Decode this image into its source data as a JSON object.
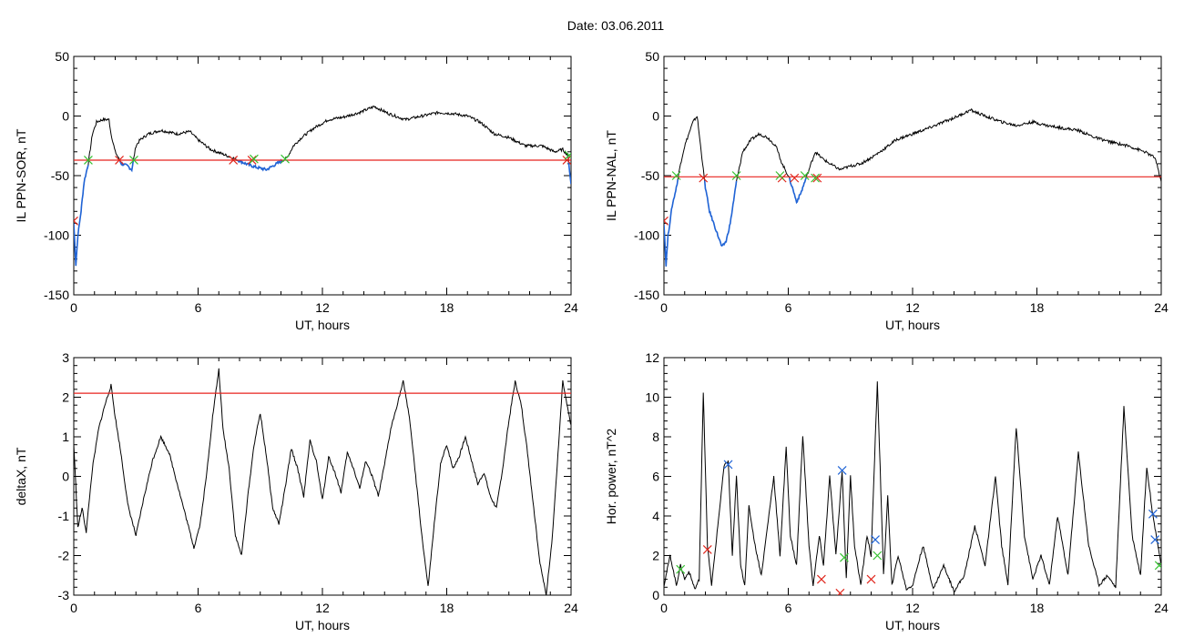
{
  "figure": {
    "title": "Date:  03.06.2011"
  },
  "colors": {
    "line": "#000000",
    "threshold": "#e8231e",
    "blue": "#1f63d6",
    "green": "#35c130",
    "red_marker": "#e0261c"
  },
  "chart_data": [
    {
      "id": "ppn-sor",
      "type": "line",
      "ylabel": "IL PPN-SOR, nT",
      "xlabel": "UT, hours",
      "xlim": [
        0,
        24
      ],
      "ylim": [
        -150,
        50
      ],
      "xticks": [
        "0",
        "6",
        "12",
        "18",
        "24"
      ],
      "yticks": [
        "50",
        "0",
        "-50",
        "-100",
        "-150"
      ],
      "threshold": -37,
      "series": [
        {
          "x": [
            0,
            0.1,
            0.2,
            0.35,
            0.5,
            0.7,
            0.9,
            1.1,
            1.4,
            1.7,
            1.8,
            2.0,
            2.3,
            2.6,
            2.8,
            3.0,
            3.2,
            3.6,
            4.2,
            5.0,
            5.6,
            6.0,
            6.6,
            7.2,
            7.8,
            8.3,
            8.8,
            9.3,
            9.8,
            10.3,
            10.6,
            11.0,
            11.6,
            12.3,
            13.0,
            13.8,
            14.5,
            15.2,
            16.0,
            16.8,
            17.6,
            18.3,
            19.0,
            19.6,
            20.3,
            21.0,
            21.8,
            22.6,
            23.2,
            23.6,
            23.85,
            24
          ],
          "y": [
            -90,
            -125,
            -100,
            -80,
            -55,
            -40,
            -15,
            -5,
            -3,
            -3,
            -15,
            -30,
            -40,
            -42,
            -45,
            -25,
            -20,
            -15,
            -12,
            -15,
            -13,
            -20,
            -28,
            -32,
            -36,
            -40,
            -43,
            -45,
            -40,
            -35,
            -25,
            -18,
            -10,
            -3,
            -1,
            3,
            8,
            2,
            -3,
            0,
            3,
            2,
            0,
            -5,
            -15,
            -18,
            -25,
            -25,
            -30,
            -28,
            -33,
            -57
          ]
        }
      ],
      "markers": {
        "red": [
          [
            0,
            -88
          ],
          [
            2.2,
            -37
          ],
          [
            7.7,
            -37
          ],
          [
            8.6,
            -37
          ],
          [
            23.8,
            -37
          ]
        ],
        "green": [
          [
            0.7,
            -37
          ],
          [
            2.9,
            -37
          ],
          [
            8.7,
            -36
          ],
          [
            10.2,
            -36
          ],
          [
            23.9,
            -33
          ]
        ],
        "blue_segments": [
          [
            0,
            0.8
          ],
          [
            2.2,
            3.0
          ],
          [
            7.7,
            10.3
          ],
          [
            23.6,
            24
          ]
        ]
      }
    },
    {
      "id": "ppn-nal",
      "type": "line",
      "ylabel": "IL PPN-NAL, nT",
      "xlabel": "UT, hours",
      "xlim": [
        0,
        24
      ],
      "ylim": [
        -150,
        50
      ],
      "xticks": [
        "0",
        "6",
        "12",
        "18",
        "24"
      ],
      "yticks": [
        "50",
        "0",
        "-50",
        "-100",
        "-150"
      ],
      "threshold": -51,
      "series": [
        {
          "x": [
            0,
            0.1,
            0.2,
            0.4,
            0.6,
            0.8,
            1.0,
            1.2,
            1.4,
            1.6,
            1.8,
            2.0,
            2.2,
            2.4,
            2.6,
            2.8,
            3.0,
            3.2,
            3.5,
            3.8,
            4.2,
            4.6,
            5.0,
            5.4,
            5.7,
            6.0,
            6.2,
            6.4,
            6.6,
            6.8,
            7.0,
            7.3,
            7.6,
            8.0,
            8.5,
            9.0,
            9.5,
            10.0,
            10.6,
            11.2,
            12.0,
            12.8,
            13.5,
            14.2,
            14.8,
            15.5,
            16.3,
            17.0,
            17.8,
            18.5,
            19.2,
            20.0,
            20.8,
            21.6,
            22.4,
            23.2,
            23.7,
            24
          ],
          "y": [
            -90,
            -125,
            -100,
            -75,
            -60,
            -40,
            -25,
            -15,
            -5,
            0,
            -30,
            -60,
            -80,
            -90,
            -100,
            -110,
            -105,
            -90,
            -55,
            -30,
            -20,
            -15,
            -18,
            -25,
            -40,
            -50,
            -60,
            -72,
            -65,
            -55,
            -45,
            -30,
            -35,
            -40,
            -45,
            -42,
            -40,
            -35,
            -28,
            -20,
            -15,
            -10,
            -5,
            0,
            5,
            0,
            -5,
            -8,
            -5,
            -8,
            -10,
            -12,
            -18,
            -22,
            -25,
            -30,
            -35,
            -55
          ]
        }
      ],
      "markers": {
        "red": [
          [
            0,
            -88
          ],
          [
            1.9,
            -52
          ],
          [
            5.7,
            -52
          ],
          [
            6.3,
            -52
          ],
          [
            7.4,
            -52
          ]
        ],
        "green": [
          [
            0.6,
            -50
          ],
          [
            3.5,
            -50
          ],
          [
            5.6,
            -50
          ],
          [
            6.8,
            -50
          ],
          [
            7.3,
            -52
          ]
        ],
        "blue_segments": [
          [
            0,
            0.7
          ],
          [
            1.8,
            3.5
          ],
          [
            5.6,
            7.5
          ]
        ]
      }
    },
    {
      "id": "deltax",
      "type": "line",
      "ylabel": "deltaX, nT",
      "xlabel": "UT, hours",
      "xlim": [
        0,
        24
      ],
      "ylim": [
        -3,
        3
      ],
      "xticks": [
        "0",
        "6",
        "12",
        "18",
        "24"
      ],
      "yticks": [
        "3",
        "2",
        "1",
        "0",
        "-1",
        "-2",
        "-3"
      ],
      "threshold": 2.1,
      "series": [
        {
          "x": [
            0,
            0.2,
            0.4,
            0.6,
            0.9,
            1.2,
            1.5,
            1.8,
            2.0,
            2.3,
            2.6,
            3.0,
            3.4,
            3.8,
            4.2,
            4.6,
            5.0,
            5.4,
            5.8,
            6.1,
            6.4,
            6.7,
            7.0,
            7.2,
            7.5,
            7.8,
            8.1,
            8.4,
            8.7,
            9.0,
            9.3,
            9.6,
            9.9,
            10.2,
            10.5,
            10.8,
            11.1,
            11.4,
            11.7,
            12.0,
            12.3,
            12.6,
            12.9,
            13.2,
            13.5,
            13.8,
            14.1,
            14.4,
            14.7,
            15.0,
            15.3,
            15.6,
            15.9,
            16.2,
            16.5,
            16.8,
            17.1,
            17.4,
            17.7,
            18.0,
            18.3,
            18.6,
            18.9,
            19.2,
            19.5,
            19.8,
            20.1,
            20.4,
            20.7,
            21.0,
            21.3,
            21.6,
            21.9,
            22.2,
            22.5,
            22.8,
            23.1,
            23.4,
            23.6,
            23.8,
            24
          ],
          "y": [
            0.8,
            -1.3,
            -0.8,
            -1.4,
            0.2,
            1.2,
            1.8,
            2.3,
            1.5,
            0.5,
            -0.7,
            -1.5,
            -0.5,
            0.4,
            1.0,
            0.6,
            -0.2,
            -1.0,
            -1.8,
            -1.2,
            0.0,
            1.5,
            2.7,
            1.2,
            0.2,
            -1.5,
            -2.0,
            -0.5,
            0.8,
            1.6,
            0.5,
            -0.8,
            -1.2,
            -0.3,
            0.7,
            0.2,
            -0.5,
            0.9,
            0.4,
            -0.6,
            0.5,
            0.1,
            -0.4,
            0.6,
            0.2,
            -0.3,
            0.4,
            0.0,
            -0.5,
            0.3,
            1.2,
            1.8,
            2.4,
            1.5,
            0.0,
            -1.5,
            -2.8,
            -1.2,
            0.3,
            0.8,
            0.2,
            0.5,
            1.0,
            0.4,
            -0.2,
            0.1,
            -0.5,
            -0.8,
            0.2,
            1.4,
            2.4,
            1.8,
            0.6,
            -0.8,
            -2.2,
            -3.0,
            -1.5,
            0.8,
            2.4,
            1.8,
            1.3
          ]
        }
      ]
    },
    {
      "id": "hor-power",
      "type": "line",
      "ylabel": "Hor. power, nT^2",
      "xlabel": "UT, hours",
      "xlim": [
        0,
        24
      ],
      "ylim": [
        0,
        12
      ],
      "xticks": [
        "0",
        "6",
        "12",
        "18",
        "24"
      ],
      "yticks": [
        "12",
        "10",
        "8",
        "6",
        "4",
        "2",
        "0"
      ],
      "series": [
        {
          "x": [
            0,
            0.3,
            0.6,
            0.8,
            1.0,
            1.2,
            1.5,
            1.7,
            1.9,
            2.1,
            2.3,
            2.6,
            2.9,
            3.1,
            3.3,
            3.5,
            3.7,
            3.9,
            4.1,
            4.4,
            4.7,
            5.0,
            5.3,
            5.6,
            5.9,
            6.1,
            6.4,
            6.7,
            7.0,
            7.2,
            7.5,
            7.7,
            8.0,
            8.3,
            8.6,
            8.8,
            9.0,
            9.2,
            9.5,
            9.8,
            10.0,
            10.3,
            10.6,
            10.8,
            11.0,
            11.3,
            11.7,
            12.0,
            12.5,
            13.0,
            13.5,
            14.0,
            14.5,
            15.0,
            15.5,
            16.0,
            16.3,
            16.6,
            17.0,
            17.4,
            17.8,
            18.2,
            18.6,
            19.0,
            19.5,
            20.0,
            20.5,
            21.0,
            21.4,
            21.8,
            22.2,
            22.6,
            23.0,
            23.3,
            23.6,
            23.8,
            24
          ],
          "y": [
            0.5,
            2.0,
            0.5,
            1.5,
            0.8,
            1.2,
            0.3,
            0.8,
            10.3,
            2.5,
            0.5,
            3.5,
            6.5,
            6.8,
            2.0,
            6.0,
            1.5,
            0.5,
            4.5,
            2.5,
            1.0,
            3.5,
            6.0,
            2.0,
            7.5,
            3.0,
            1.5,
            8.1,
            2.5,
            0.5,
            3.0,
            1.5,
            6.0,
            2.0,
            6.3,
            0.8,
            6.0,
            2.5,
            0.5,
            3.0,
            2.0,
            10.8,
            1.0,
            5.0,
            0.5,
            2.0,
            0.3,
            0.5,
            2.5,
            0.3,
            1.5,
            0.2,
            1.0,
            3.5,
            1.5,
            6.0,
            2.5,
            0.5,
            8.5,
            3.0,
            0.8,
            2.0,
            0.5,
            4.0,
            1.0,
            7.2,
            2.5,
            0.5,
            1.0,
            0.4,
            9.5,
            3.0,
            1.0,
            6.5,
            4.0,
            2.8,
            1.5
          ]
        }
      ],
      "markers": {
        "red": [
          [
            2.1,
            2.3
          ],
          [
            7.6,
            0.8
          ],
          [
            8.5,
            0.1
          ],
          [
            10.0,
            0.8
          ]
        ],
        "green": [
          [
            0.8,
            1.3
          ],
          [
            8.7,
            1.9
          ],
          [
            10.3,
            2.0
          ],
          [
            23.9,
            1.5
          ]
        ],
        "blue": [
          [
            3.1,
            6.6
          ],
          [
            8.6,
            6.3
          ],
          [
            10.2,
            2.8
          ],
          [
            23.6,
            4.1
          ],
          [
            23.7,
            2.8
          ]
        ]
      }
    }
  ]
}
